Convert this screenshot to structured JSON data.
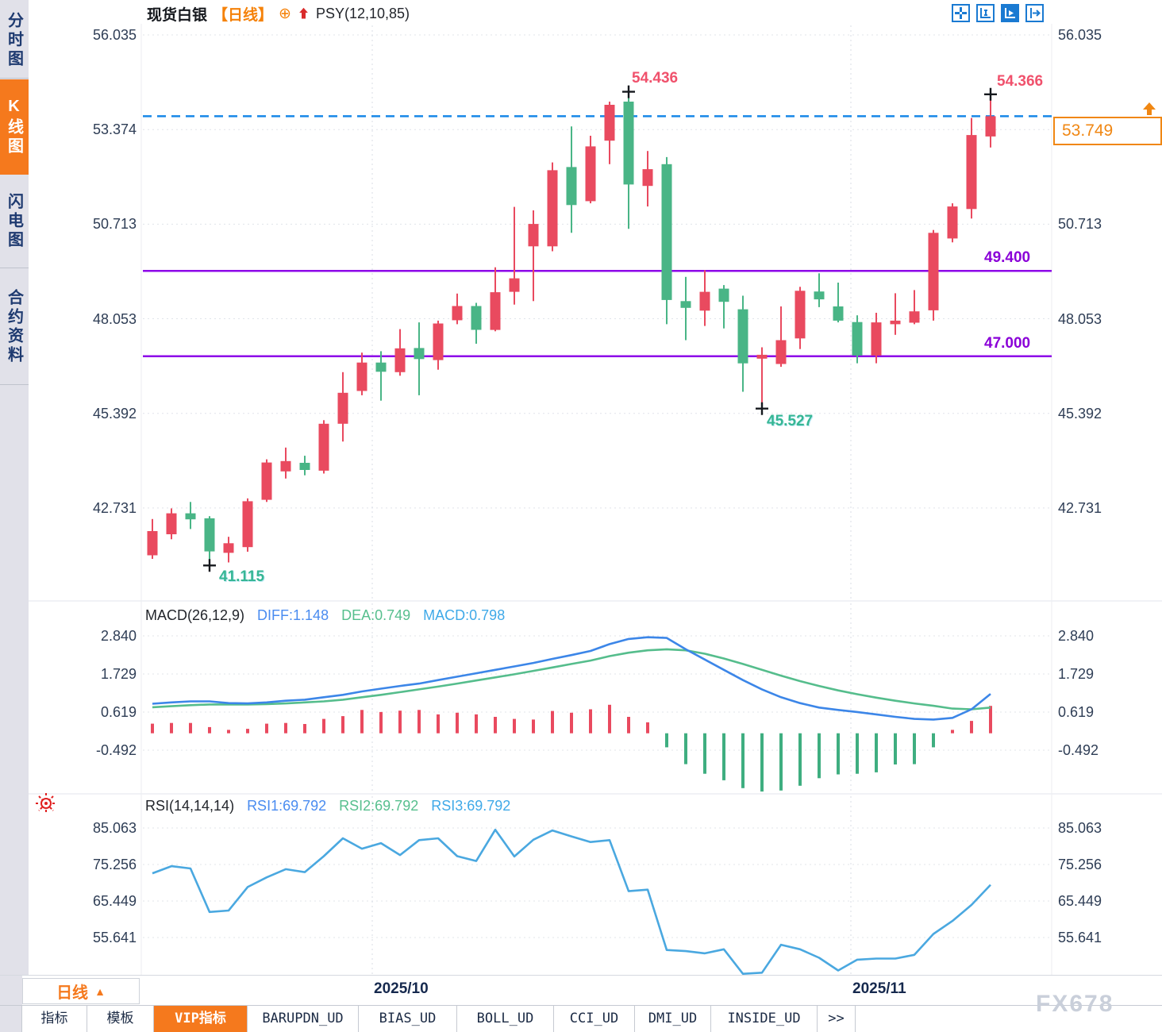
{
  "header": {
    "symbol": "现货白银",
    "timeframe": "【日线】",
    "plus_icon": "⊕",
    "overlay_indicator": "PSY(12,10,85)"
  },
  "toolbar": {
    "icons": [
      "crosshair-icon",
      "axis-scale-icon",
      "axis-auto-icon",
      "pan-right-icon"
    ],
    "active_index": 2
  },
  "sidebar": {
    "items": [
      {
        "label": "分时图",
        "active": false
      },
      {
        "label": "K线图",
        "active": true
      },
      {
        "label": "闪电图",
        "active": false
      },
      {
        "label": "合约资料",
        "active": false
      }
    ]
  },
  "colors": {
    "up": "#e94a5f",
    "down": "#49b586",
    "hist_up": "#e94a5f",
    "hist_down": "#3fae80",
    "diff_line": "#3c86e8",
    "dea_line": "#55bd8c",
    "rsi_line": "#4aa8e0",
    "support_line": "#8d06e8",
    "current_price_line": "#1787e8",
    "accent_orange": "#f5791d"
  },
  "chart_data": [
    {
      "type": "candlestick",
      "title": "现货白银 日线",
      "y_ticks": [
        "56.035",
        "53.374",
        "50.713",
        "48.053",
        "45.392",
        "42.731"
      ],
      "x_tick_labels": [
        "2025/10",
        "2025/11"
      ],
      "current_price": 53.749,
      "support_lines": [
        49.4,
        47.0
      ],
      "candles": [
        [
          41.4,
          42.42,
          41.3,
          42.08
        ],
        [
          41.99,
          42.72,
          41.85,
          42.58
        ],
        [
          42.58,
          42.9,
          42.14,
          42.41
        ],
        [
          42.44,
          42.5,
          41.115,
          41.51
        ],
        [
          41.47,
          41.92,
          41.2,
          41.74
        ],
        [
          41.63,
          43.0,
          41.5,
          42.92
        ],
        [
          42.96,
          44.1,
          42.9,
          44.01
        ],
        [
          43.76,
          44.43,
          43.56,
          44.05
        ],
        [
          44.0,
          44.2,
          43.65,
          43.8
        ],
        [
          43.78,
          45.2,
          43.7,
          45.1
        ],
        [
          45.1,
          46.55,
          44.6,
          45.97
        ],
        [
          46.02,
          47.1,
          45.9,
          46.82
        ],
        [
          46.82,
          47.14,
          45.75,
          46.56
        ],
        [
          46.55,
          47.76,
          46.45,
          47.22
        ],
        [
          47.23,
          47.95,
          45.9,
          46.92
        ],
        [
          46.89,
          48.0,
          46.62,
          47.92
        ],
        [
          48.01,
          48.76,
          47.9,
          48.41
        ],
        [
          48.41,
          48.5,
          47.35,
          47.74
        ],
        [
          47.74,
          49.5,
          47.7,
          48.8
        ],
        [
          48.81,
          51.2,
          48.45,
          49.19
        ],
        [
          50.09,
          51.1,
          48.55,
          50.72
        ],
        [
          50.09,
          52.45,
          49.95,
          52.23
        ],
        [
          52.32,
          53.46,
          50.47,
          51.25
        ],
        [
          51.36,
          53.2,
          51.3,
          52.9
        ],
        [
          53.06,
          54.16,
          52.4,
          54.07
        ],
        [
          54.16,
          54.436,
          50.58,
          51.83
        ],
        [
          51.79,
          52.77,
          51.21,
          52.26
        ],
        [
          52.4,
          52.6,
          47.9,
          48.58
        ],
        [
          48.55,
          49.23,
          47.45,
          48.36
        ],
        [
          48.28,
          49.42,
          47.85,
          48.81
        ],
        [
          48.9,
          49.0,
          47.78,
          48.53
        ],
        [
          48.32,
          48.7,
          46.0,
          46.8
        ],
        [
          46.93,
          47.25,
          45.527,
          47.04
        ],
        [
          46.78,
          48.4,
          46.7,
          47.45
        ],
        [
          47.5,
          48.95,
          47.2,
          48.84
        ],
        [
          48.82,
          49.33,
          48.38,
          48.6
        ],
        [
          48.4,
          49.07,
          47.95,
          48.0
        ],
        [
          47.96,
          48.15,
          46.8,
          47.02
        ],
        [
          47.02,
          48.22,
          46.8,
          47.95
        ],
        [
          47.9,
          48.77,
          47.6,
          48.0
        ],
        [
          47.94,
          48.86,
          47.9,
          48.26
        ],
        [
          48.29,
          50.55,
          48.0,
          50.47
        ],
        [
          50.31,
          51.3,
          50.2,
          51.21
        ],
        [
          51.14,
          53.7,
          50.87,
          53.22
        ],
        [
          53.18,
          54.366,
          52.87,
          53.749
        ]
      ],
      "extreme_markers": [
        {
          "index": 3,
          "at": "low"
        },
        {
          "index": 25,
          "at": "high"
        },
        {
          "index": 32,
          "at": "low"
        },
        {
          "index": 44,
          "at": "high"
        }
      ]
    },
    {
      "type": "bar",
      "name": "MACD",
      "y_ticks": [
        "2.840",
        "1.729",
        "0.619",
        "-0.492"
      ],
      "histogram": [
        0.28,
        0.3,
        0.3,
        0.18,
        0.1,
        0.13,
        0.28,
        0.3,
        0.27,
        0.42,
        0.5,
        0.68,
        0.62,
        0.66,
        0.68,
        0.55,
        0.6,
        0.55,
        0.48,
        0.42,
        0.4,
        0.65,
        0.6,
        0.7,
        0.83,
        0.48,
        0.32,
        -0.41,
        -0.9,
        -1.18,
        -1.37,
        -1.6,
        -1.7,
        -1.67,
        -1.53,
        -1.31,
        -1.2,
        -1.18,
        -1.14,
        -0.91,
        -0.9,
        -0.41,
        0.1,
        0.36,
        0.798
      ],
      "series": [
        {
          "name": "DIFF",
          "values": [
            0.86,
            0.9,
            0.93,
            0.93,
            0.88,
            0.87,
            0.9,
            0.95,
            0.98,
            1.05,
            1.12,
            1.22,
            1.3,
            1.38,
            1.45,
            1.55,
            1.65,
            1.75,
            1.85,
            1.95,
            2.05,
            2.17,
            2.28,
            2.4,
            2.6,
            2.75,
            2.8,
            2.78,
            2.45,
            2.15,
            1.85,
            1.55,
            1.28,
            1.05,
            0.88,
            0.75,
            0.68,
            0.62,
            0.55,
            0.48,
            0.42,
            0.4,
            0.45,
            0.7,
            1.148
          ]
        },
        {
          "name": "DEA",
          "values": [
            0.76,
            0.79,
            0.82,
            0.84,
            0.84,
            0.84,
            0.85,
            0.87,
            0.9,
            0.93,
            0.98,
            1.05,
            1.12,
            1.2,
            1.28,
            1.36,
            1.45,
            1.54,
            1.63,
            1.72,
            1.82,
            1.92,
            2.02,
            2.12,
            2.25,
            2.35,
            2.42,
            2.45,
            2.42,
            2.32,
            2.18,
            2.02,
            1.85,
            1.68,
            1.52,
            1.38,
            1.25,
            1.14,
            1.04,
            0.95,
            0.87,
            0.8,
            0.72,
            0.7,
            0.749
          ]
        }
      ]
    },
    {
      "type": "line",
      "name": "RSI",
      "y_ticks": [
        "85.063",
        "75.256",
        "65.449",
        "55.641"
      ],
      "series": [
        {
          "name": "RSI1",
          "values": [
            72.9,
            74.8,
            74.2,
            62.5,
            62.9,
            69.2,
            71.8,
            74.0,
            73.2,
            77.5,
            82.3,
            79.5,
            81.0,
            77.8,
            81.8,
            82.3,
            77.5,
            76.2,
            84.6,
            77.4,
            81.9,
            84.4,
            82.8,
            81.3,
            81.8,
            68.1,
            68.5,
            52.3,
            52.0,
            51.4,
            52.5,
            45.9,
            46.2,
            53.7,
            52.5,
            50.2,
            46.8,
            49.7,
            50.0,
            50.0,
            51.0,
            56.6,
            60.1,
            64.4,
            69.79
          ]
        }
      ]
    }
  ],
  "annotations": {
    "peak_high": "54.436",
    "last_high": "54.366",
    "first_low": "41.115",
    "mid_low": "45.527",
    "support_upper": "49.400",
    "support_lower": "47.000"
  },
  "price_box": {
    "value": "53.749"
  },
  "macd_legend": {
    "title": "MACD(26,12,9)",
    "diff": "DIFF:1.148",
    "dea": "DEA:0.749",
    "macd": "MACD:0.798"
  },
  "rsi_legend": {
    "title": "RSI(14,14,14)",
    "rsi1": "RSI1:69.792",
    "rsi2": "RSI2:69.792",
    "rsi3": "RSI3:69.792"
  },
  "x_axis": {
    "labels": [
      "2025/10",
      "2025/11"
    ]
  },
  "bottom": {
    "timeframe": "日线",
    "arrow": "▲",
    "tabs": [
      {
        "label": "指标",
        "active": false
      },
      {
        "label": "模板",
        "active": false
      },
      {
        "label": "VIP指标",
        "active": true
      },
      {
        "label": "BARUPDN_UD",
        "active": false
      },
      {
        "label": "BIAS_UD",
        "active": false
      },
      {
        "label": "BOLL_UD",
        "active": false
      },
      {
        "label": "CCI_UD",
        "active": false
      },
      {
        "label": "DMI_UD",
        "active": false
      },
      {
        "label": "INSIDE_UD",
        "active": false
      },
      {
        "label": ">>",
        "active": false
      }
    ]
  },
  "watermark": "FX678"
}
